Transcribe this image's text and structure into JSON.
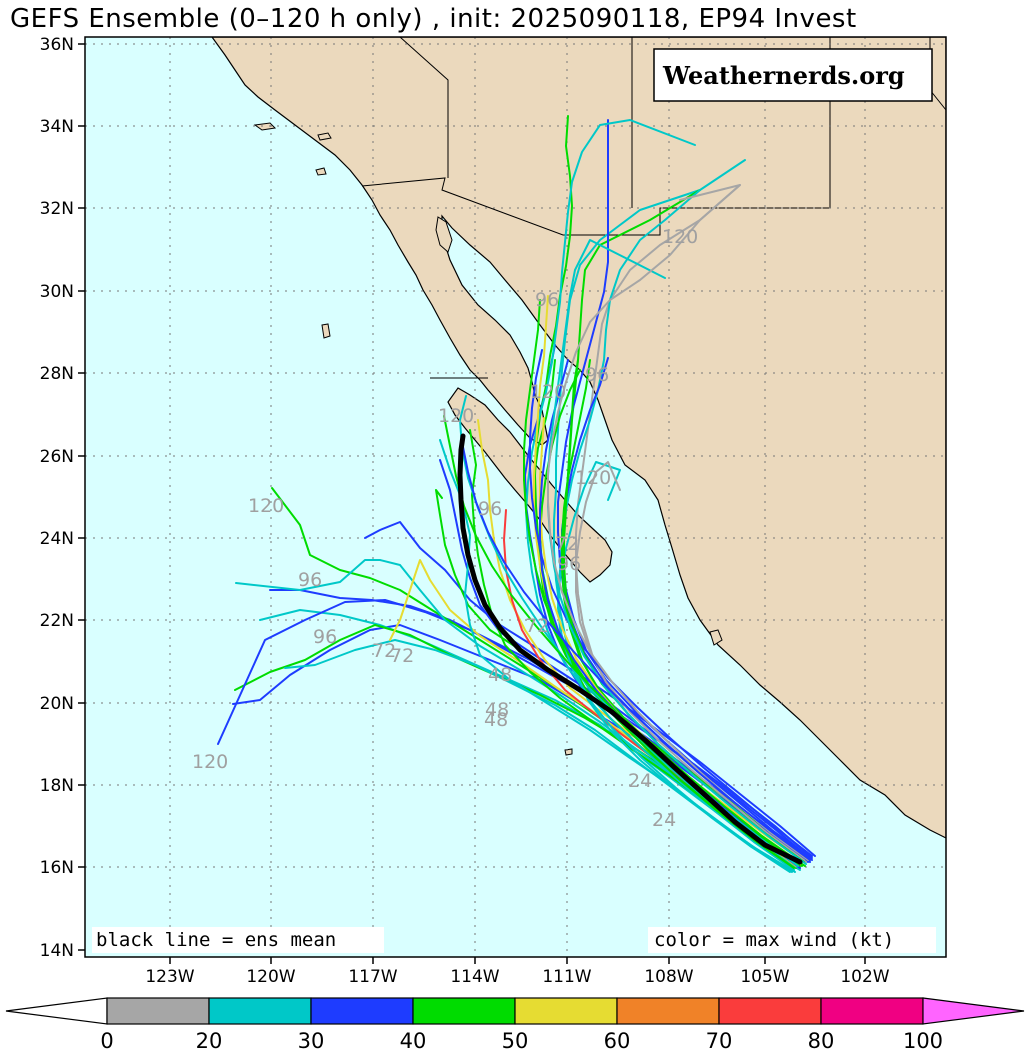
{
  "title": "GEFS Ensemble (0–120 h only) , init: 2025090118, EP94 Invest",
  "watermark": "Weathernerds.org",
  "footnote_left": "black line = ens mean",
  "footnote_right": "color = max wind (kt)",
  "lat_ticks": [
    "36N",
    "34N",
    "32N",
    "30N",
    "28N",
    "26N",
    "24N",
    "22N",
    "20N",
    "18N",
    "16N",
    "14N"
  ],
  "lon_ticks": [
    "123W",
    "120W",
    "117W",
    "114W",
    "111W",
    "108W",
    "105W",
    "102W"
  ],
  "hour_labels": [
    "120",
    "96",
    "96",
    "72",
    "72",
    "48",
    "48",
    "120",
    "96",
    "72",
    "120",
    "96",
    "120",
    "96",
    "120",
    "120",
    "96",
    "72",
    "24",
    "24",
    "48"
  ],
  "colorbar": {
    "tick_labels": [
      "0",
      "20",
      "30",
      "40",
      "50",
      "60",
      "70",
      "80",
      "100"
    ],
    "colors": [
      "#a6a6a6",
      "#00c8c8",
      "#1e3cff",
      "#00dc00",
      "#e6dc32",
      "#f08228",
      "#fa3c3c",
      "#f00082",
      "#ff64ff"
    ],
    "left_extend_color": "#ffffff"
  },
  "colors": {
    "ocean": "#d9ffff",
    "land": "#ebd9bd",
    "mean": "#000000",
    "gridline": "#777777",
    "hour_label": "#a0a0a0"
  }
}
